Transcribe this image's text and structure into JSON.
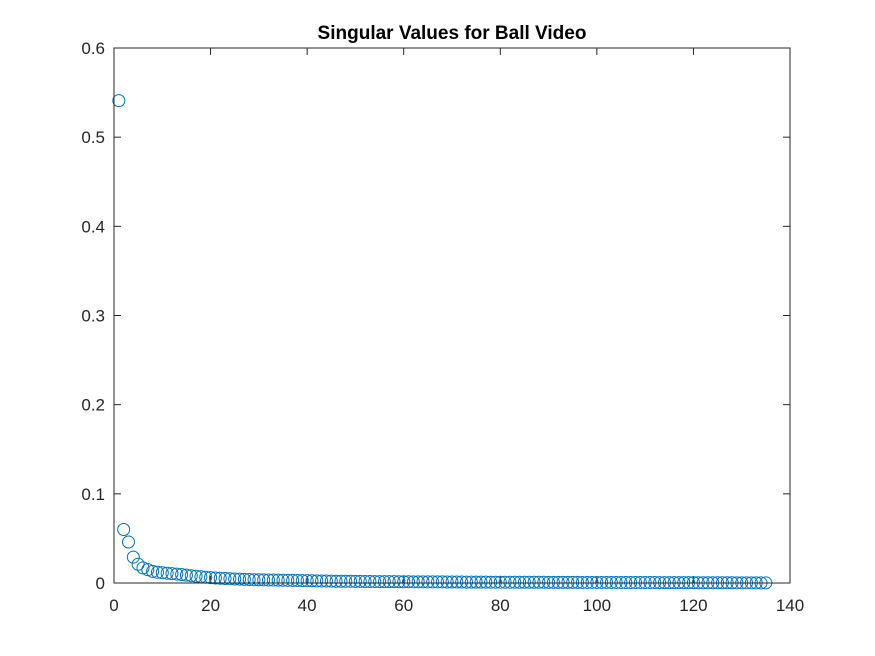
{
  "chart_data": {
    "type": "scatter",
    "title": "Singular Values for Ball Video",
    "xlabel": "",
    "ylabel": "",
    "xlim": [
      0,
      140
    ],
    "ylim": [
      0,
      0.6
    ],
    "xticks": [
      0,
      20,
      40,
      60,
      80,
      100,
      120,
      140
    ],
    "xtick_labels": [
      "0",
      "20",
      "40",
      "60",
      "80",
      "100",
      "120",
      "140"
    ],
    "yticks": [
      0,
      0.1,
      0.2,
      0.3,
      0.4,
      0.5,
      0.6
    ],
    "ytick_labels": [
      "0",
      "0.1",
      "0.2",
      "0.3",
      "0.4",
      "0.5",
      "0.6"
    ],
    "grid": false,
    "marker": "open-circle",
    "marker_color": "#0072BD",
    "x": [
      1,
      2,
      3,
      4,
      5,
      6,
      7,
      8,
      9,
      10,
      11,
      12,
      13,
      14,
      15,
      16,
      17,
      18,
      19,
      20,
      21,
      22,
      23,
      24,
      25,
      26,
      27,
      28,
      29,
      30,
      31,
      32,
      33,
      34,
      35,
      36,
      37,
      38,
      39,
      40,
      41,
      42,
      43,
      44,
      45,
      46,
      47,
      48,
      49,
      50,
      51,
      52,
      53,
      54,
      55,
      56,
      57,
      58,
      59,
      60,
      61,
      62,
      63,
      64,
      65,
      66,
      67,
      68,
      69,
      70,
      71,
      72,
      73,
      74,
      75,
      76,
      77,
      78,
      79,
      80,
      81,
      82,
      83,
      84,
      85,
      86,
      87,
      88,
      89,
      90,
      91,
      92,
      93,
      94,
      95,
      96,
      97,
      98,
      99,
      100,
      101,
      102,
      103,
      104,
      105,
      106,
      107,
      108,
      109,
      110,
      111,
      112,
      113,
      114,
      115,
      116,
      117,
      118,
      119,
      120,
      121,
      122,
      123,
      124,
      125,
      126,
      127,
      128,
      129,
      130,
      131,
      132,
      133,
      134,
      135
    ],
    "y": [
      0.541,
      0.06,
      0.046,
      0.029,
      0.021,
      0.017,
      0.015,
      0.013,
      0.012,
      0.0115,
      0.011,
      0.0105,
      0.01,
      0.0095,
      0.0088,
      0.0082,
      0.0076,
      0.007,
      0.0065,
      0.006,
      0.0056,
      0.0053,
      0.005,
      0.0047,
      0.0045,
      0.0043,
      0.0041,
      0.0039,
      0.0037,
      0.0036,
      0.0035,
      0.0034,
      0.0033,
      0.0032,
      0.0031,
      0.003,
      0.0029,
      0.0028,
      0.0027,
      0.0026,
      0.0025,
      0.0024,
      0.0023,
      0.0022,
      0.0021,
      0.002,
      0.002,
      0.0019,
      0.0019,
      0.0018,
      0.0018,
      0.0017,
      0.0017,
      0.0016,
      0.0016,
      0.0015,
      0.0015,
      0.0015,
      0.0014,
      0.0014,
      0.0014,
      0.0013,
      0.0013,
      0.0013,
      0.0012,
      0.0012,
      0.0012,
      0.0012,
      0.0011,
      0.0011,
      0.0011,
      0.0011,
      0.001,
      0.001,
      0.001,
      0.001,
      0.001,
      0.0009,
      0.0009,
      0.0009,
      0.0009,
      0.0009,
      0.0009,
      0.0008,
      0.0008,
      0.0008,
      0.0008,
      0.0008,
      0.0008,
      0.0007,
      0.0007,
      0.0007,
      0.0007,
      0.0007,
      0.0007,
      0.0007,
      0.0006,
      0.0006,
      0.0006,
      0.0006,
      0.0006,
      0.0006,
      0.0006,
      0.0006,
      0.0005,
      0.0005,
      0.0005,
      0.0005,
      0.0005,
      0.0005,
      0.0005,
      0.0005,
      0.0004,
      0.0004,
      0.0004,
      0.0004,
      0.0004,
      0.0004,
      0.0004,
      0.0004,
      0.0003,
      0.0003,
      0.0003,
      0.0003,
      0.0003,
      0.0003,
      0.0003,
      0.0003,
      0.0002,
      0.0002,
      0.0002,
      0.0002,
      0.0002,
      0.0001,
      0.0001
    ]
  }
}
